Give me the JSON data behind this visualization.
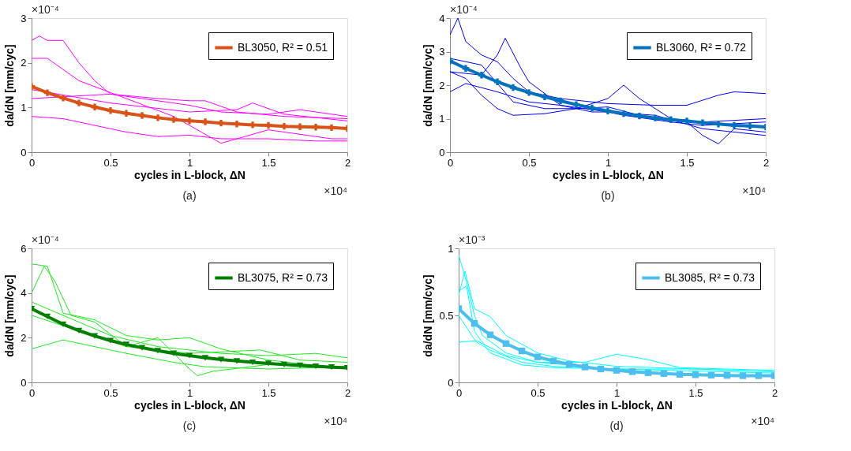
{
  "chart_data": [
    {
      "type": "line",
      "xlabel": "cycles in L-block, ΔN",
      "ylabel": "da/dN [mm/cyc]",
      "xlim": [
        0,
        2
      ],
      "xticks": [
        0,
        0.5,
        1,
        1.5,
        2
      ],
      "ylim": [
        0,
        3
      ],
      "yticks": [
        0,
        1,
        2,
        3
      ],
      "grid": false,
      "legend": "top right",
      "annotations": [
        "×10⁻⁴",
        "×10⁴",
        "(a)"
      ],
      "series": [
        {
          "type": "line",
          "color": "#ff00ff",
          "x": [
            0,
            0.05,
            0.1,
            0.2,
            0.3,
            0.4,
            0.5,
            0.7,
            1,
            1.2,
            1.5,
            1.7,
            2
          ],
          "values": [
            2.5,
            2.6,
            2.5,
            2.5,
            2.0,
            1.6,
            1.3,
            1.2,
            1.05,
            0.9,
            0.85,
            0.95,
            0.8
          ]
        },
        {
          "type": "line",
          "color": "#ff00ff",
          "x": [
            0,
            0.5,
            0.8,
            1,
            1.1,
            1.3,
            1.6,
            2
          ],
          "values": [
            1.2,
            1.3,
            1.2,
            1.15,
            1.15,
            0.9,
            0.8,
            0.75
          ]
        },
        {
          "type": "line",
          "color": "#ff00ff",
          "x": [
            0,
            0.2,
            0.4,
            0.6,
            0.8,
            1,
            1.2,
            1.5,
            1.8,
            2
          ],
          "values": [
            0.8,
            0.75,
            0.6,
            0.45,
            0.35,
            0.38,
            0.3,
            0.3,
            0.25,
            0.25
          ]
        },
        {
          "type": "line",
          "color": "#ff00ff",
          "x": [
            0,
            0.1,
            0.3,
            0.6,
            0.9,
            1.2,
            1.5,
            1.9,
            2
          ],
          "values": [
            2.1,
            2.1,
            1.6,
            1.2,
            0.8,
            0.2,
            0.5,
            0.3,
            0.3
          ]
        },
        {
          "type": "line",
          "color": "#ff00ff",
          "x": [
            0,
            0.5,
            1,
            1.3,
            1.4,
            1.6,
            2
          ],
          "values": [
            1.4,
            1.1,
            0.9,
            0.95,
            1.1,
            0.85,
            0.7
          ]
        },
        {
          "type": "line",
          "name": "BL3050, R² = 0.51",
          "color": "#d95319",
          "marker": "cross",
          "x": [
            0,
            0.1,
            0.2,
            0.3,
            0.4,
            0.5,
            0.6,
            0.7,
            0.8,
            0.9,
            1,
            1.1,
            1.2,
            1.3,
            1.4,
            1.5,
            1.6,
            1.7,
            1.8,
            1.9,
            2
          ],
          "values": [
            1.47,
            1.33,
            1.21,
            1.1,
            1.01,
            0.93,
            0.87,
            0.82,
            0.77,
            0.73,
            0.7,
            0.68,
            0.65,
            0.63,
            0.61,
            0.6,
            0.58,
            0.57,
            0.56,
            0.55,
            0.53
          ]
        }
      ]
    },
    {
      "type": "line",
      "xlabel": "cycles in L-block, ΔN",
      "ylabel": "da/dN [mm/cyc]",
      "xlim": [
        0,
        2
      ],
      "xticks": [
        0,
        0.5,
        1,
        1.5,
        2
      ],
      "ylim": [
        0,
        4
      ],
      "yticks": [
        0,
        1,
        2,
        3,
        4
      ],
      "grid": false,
      "legend": "top right",
      "annotations": [
        "×10⁻⁴",
        "×10⁴",
        "(b)"
      ],
      "series": [
        {
          "type": "line",
          "color": "#0000ff",
          "x": [
            0,
            0.05,
            0.1,
            0.2,
            0.3,
            0.4,
            0.5,
            0.7,
            1,
            1.3,
            1.5,
            1.7,
            1.8,
            2
          ],
          "values": [
            3.5,
            4.0,
            3.3,
            2.9,
            2.7,
            2.2,
            1.8,
            1.6,
            1.45,
            1.4,
            1.4,
            1.7,
            1.8,
            1.75
          ]
        },
        {
          "type": "line",
          "color": "#0000ff",
          "x": [
            0,
            0.2,
            0.3,
            0.35,
            0.45,
            0.5,
            0.7,
            0.9,
            1,
            1.1,
            1.4,
            1.6,
            2
          ],
          "values": [
            2.4,
            2.3,
            2.9,
            3.4,
            2.5,
            2.1,
            1.4,
            1.2,
            1.2,
            1.1,
            0.9,
            0.8,
            0.9
          ]
        },
        {
          "type": "line",
          "color": "#0000ff",
          "x": [
            0,
            0.1,
            0.2,
            0.3,
            0.4,
            0.6,
            0.8,
            1,
            1.2,
            1.5,
            1.6,
            1.7,
            1.8,
            2
          ],
          "values": [
            2.4,
            2.2,
            1.7,
            1.3,
            1.1,
            1.15,
            1.3,
            1.35,
            1.1,
            0.9,
            0.5,
            0.25,
            0.7,
            0.6
          ]
        },
        {
          "type": "line",
          "color": "#0000ff",
          "x": [
            0,
            0.2,
            0.4,
            0.6,
            0.8,
            1,
            1.1,
            1.2,
            1.4,
            1.6,
            2
          ],
          "values": [
            2.8,
            2.6,
            1.5,
            1.3,
            1.3,
            1.6,
            2.0,
            1.6,
            1.0,
            0.9,
            1.0
          ]
        },
        {
          "type": "line",
          "color": "#0000ff",
          "x": [
            0,
            0.1,
            0.3,
            0.5,
            0.7,
            1,
            1.3,
            1.6,
            2
          ],
          "values": [
            1.8,
            2.05,
            1.8,
            1.5,
            1.4,
            1.2,
            1.1,
            0.7,
            0.5
          ]
        },
        {
          "type": "line",
          "name": "BL3060, R² = 0.72",
          "color": "#0072bd",
          "marker": "cross",
          "x": [
            0,
            0.1,
            0.2,
            0.3,
            0.4,
            0.5,
            0.6,
            0.7,
            0.8,
            0.9,
            1,
            1.1,
            1.2,
            1.3,
            1.4,
            1.5,
            1.6,
            1.7,
            1.8,
            1.9,
            2
          ],
          "values": [
            2.72,
            2.5,
            2.3,
            2.1,
            1.93,
            1.78,
            1.65,
            1.53,
            1.42,
            1.32,
            1.23,
            1.15,
            1.08,
            1.02,
            0.97,
            0.93,
            0.88,
            0.84,
            0.8,
            0.78,
            0.75
          ]
        }
      ]
    },
    {
      "type": "line",
      "xlabel": "cycles in L-block, ΔN",
      "ylabel": "da/dN [mm/cyc]",
      "xlim": [
        0,
        2
      ],
      "xticks": [
        0,
        0.5,
        1,
        1.5,
        2
      ],
      "ylim": [
        0,
        6
      ],
      "yticks": [
        0,
        2,
        4,
        6
      ],
      "grid": false,
      "legend": "top right",
      "annotations": [
        "×10⁻⁴",
        "×10⁴",
        "(c)"
      ],
      "series": [
        {
          "type": "line",
          "color": "#22e822",
          "x": [
            0,
            0.1,
            0.2,
            0.4,
            0.6,
            0.8,
            1,
            1.2,
            1.5,
            2
          ],
          "values": [
            5.3,
            5.2,
            3.1,
            2.8,
            2.1,
            1.9,
            2.0,
            1.5,
            1.0,
            0.6
          ]
        },
        {
          "type": "line",
          "color": "#22e822",
          "x": [
            0,
            0.08,
            0.15,
            0.25,
            0.4,
            0.6,
            1,
            1.45,
            1.7,
            2
          ],
          "values": [
            4.0,
            5.2,
            4.5,
            3.0,
            2.7,
            1.6,
            1.3,
            1.45,
            1.0,
            0.9
          ]
        },
        {
          "type": "line",
          "color": "#22e822",
          "x": [
            0,
            0.2,
            0.4,
            0.6,
            0.9,
            1.1,
            1.5,
            2
          ],
          "values": [
            1.5,
            1.9,
            1.6,
            1.3,
            0.9,
            0.7,
            0.6,
            0.7
          ]
        },
        {
          "type": "line",
          "color": "#22e822",
          "x": [
            0,
            0.3,
            0.6,
            0.8,
            1,
            1.05,
            1.15,
            1.5,
            2
          ],
          "values": [
            3.0,
            2.3,
            1.6,
            2.0,
            0.6,
            0.3,
            0.5,
            0.8,
            0.7
          ]
        },
        {
          "type": "line",
          "color": "#22e822",
          "x": [
            0,
            0.2,
            0.5,
            0.8,
            1.2,
            1.5,
            1.8,
            2
          ],
          "values": [
            3.6,
            3.0,
            2.1,
            1.6,
            1.3,
            1.2,
            1.3,
            1.1
          ]
        },
        {
          "type": "line",
          "name": "BL3075, R² = 0.73",
          "color": "#007f00",
          "marker": "triangle",
          "x": [
            0,
            0.1,
            0.2,
            0.3,
            0.4,
            0.5,
            0.6,
            0.7,
            0.8,
            0.9,
            1,
            1.1,
            1.2,
            1.3,
            1.4,
            1.5,
            1.6,
            1.7,
            1.8,
            1.9,
            2
          ],
          "values": [
            3.3,
            2.95,
            2.6,
            2.32,
            2.08,
            1.87,
            1.7,
            1.55,
            1.42,
            1.3,
            1.2,
            1.1,
            1.02,
            0.96,
            0.9,
            0.85,
            0.8,
            0.76,
            0.72,
            0.68,
            0.65
          ]
        }
      ]
    },
    {
      "type": "line",
      "xlabel": "cycles in L-block, ΔN",
      "ylabel": "da/dN [mm/cyc]",
      "xlim": [
        0,
        2
      ],
      "xticks": [
        0,
        0.5,
        1,
        1.5,
        2
      ],
      "ylim": [
        0,
        1
      ],
      "yticks": [
        0,
        0.5,
        1
      ],
      "grid": false,
      "legend": "top right",
      "annotations": [
        "×10⁻³",
        "×10⁴",
        "(d)"
      ],
      "series": [
        {
          "type": "line",
          "color": "#00ffff",
          "x": [
            0,
            0.05,
            0.1,
            0.15,
            0.3,
            0.5,
            0.8,
            1,
            1.5,
            2
          ],
          "values": [
            0.95,
            0.75,
            0.5,
            0.35,
            0.22,
            0.15,
            0.12,
            0.09,
            0.06,
            0.05
          ]
        },
        {
          "type": "line",
          "color": "#00ffff",
          "x": [
            0,
            0.04,
            0.1,
            0.2,
            0.3,
            0.5,
            0.7,
            1,
            1.5,
            2
          ],
          "values": [
            0.65,
            0.83,
            0.55,
            0.49,
            0.35,
            0.22,
            0.16,
            0.12,
            0.1,
            0.08
          ]
        },
        {
          "type": "line",
          "color": "#00ffff",
          "x": [
            0,
            0.1,
            0.3,
            0.5,
            0.8,
            1,
            1.2,
            1.4,
            2
          ],
          "values": [
            0.5,
            0.32,
            0.2,
            0.15,
            0.15,
            0.21,
            0.17,
            0.11,
            0.09
          ]
        },
        {
          "type": "line",
          "color": "#00ffff",
          "x": [
            0,
            0.1,
            0.2,
            0.4,
            0.6,
            1,
            1.5,
            2
          ],
          "values": [
            0.3,
            0.31,
            0.24,
            0.15,
            0.12,
            0.1,
            0.1,
            0.08
          ]
        },
        {
          "type": "line",
          "color": "#00ffff",
          "x": [
            0,
            0.05,
            0.1,
            0.2,
            0.4,
            0.6,
            1,
            2
          ],
          "values": [
            0.68,
            0.72,
            0.38,
            0.22,
            0.13,
            0.11,
            0.1,
            0.07
          ]
        },
        {
          "type": "line",
          "name": "BL3085, R² = 0.73",
          "color": "#4dbeee",
          "marker": "square",
          "x": [
            0,
            0.1,
            0.2,
            0.3,
            0.4,
            0.5,
            0.6,
            0.7,
            0.8,
            0.9,
            1,
            1.1,
            1.2,
            1.3,
            1.4,
            1.5,
            1.6,
            1.7,
            1.8,
            1.9,
            2
          ],
          "values": [
            0.55,
            0.44,
            0.355,
            0.29,
            0.235,
            0.19,
            0.16,
            0.135,
            0.115,
            0.1,
            0.09,
            0.08,
            0.072,
            0.066,
            0.06,
            0.057,
            0.054,
            0.052,
            0.05,
            0.05,
            0.05
          ]
        }
      ]
    }
  ]
}
